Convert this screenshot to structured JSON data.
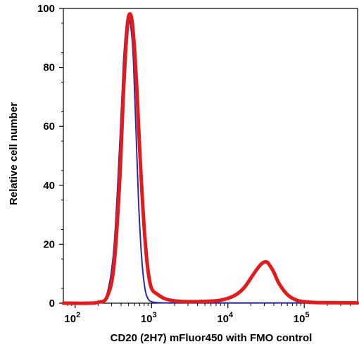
{
  "chart_data": {
    "type": "line",
    "xlabel": "CD20 (2H7) mFluor450 with FMO control",
    "ylabel": "Relative cell number",
    "x_scale": "log",
    "xlim": [
      70,
      500000
    ],
    "ylim": [
      0,
      100
    ],
    "x_ticks": [
      {
        "value": 100,
        "base": "10",
        "exp": "2"
      },
      {
        "value": 1000,
        "base": "10",
        "exp": "3"
      },
      {
        "value": 10000,
        "base": "10",
        "exp": "4"
      },
      {
        "value": 100000,
        "base": "10",
        "exp": "5"
      }
    ],
    "y_ticks": [
      0,
      20,
      40,
      60,
      80,
      100
    ],
    "grid": false,
    "legend": "none",
    "series": [
      {
        "color": "#2b2bb0",
        "x": [
          70,
          150,
          200,
          260,
          320,
          380,
          430,
          470,
          500,
          520,
          550,
          580,
          620,
          680,
          750,
          820,
          900,
          1000,
          1200,
          2000,
          5000,
          20000,
          100000,
          500000
        ],
        "y": [
          0,
          0,
          0.2,
          3,
          18,
          52,
          82,
          95,
          98,
          96,
          91,
          82,
          62,
          33,
          14,
          5,
          1.5,
          0.5,
          0.2,
          0.1,
          0.1,
          0.1,
          0.1,
          0.1
        ]
      },
      {
        "color": "#e31b1b",
        "x": [
          70,
          150,
          200,
          260,
          320,
          380,
          430,
          470,
          500,
          530,
          560,
          600,
          650,
          700,
          760,
          820,
          900,
          1000,
          1200,
          1500,
          2000,
          3000,
          5000,
          8000,
          12000,
          16000,
          20000,
          24000,
          28000,
          32000,
          35000,
          40000,
          46000,
          55000,
          65000,
          80000,
          100000,
          150000,
          500000
        ],
        "y": [
          0,
          0,
          0.3,
          2,
          12,
          40,
          72,
          90,
          97,
          98,
          95,
          86,
          70,
          52,
          35,
          22,
          11,
          5,
          3,
          1.5,
          0.8,
          0.5,
          0.6,
          1,
          2.5,
          5,
          8.5,
          11.5,
          13.5,
          14,
          13,
          10.5,
          7,
          4,
          2.2,
          1,
          0.5,
          0.2,
          0.1
        ]
      }
    ]
  }
}
